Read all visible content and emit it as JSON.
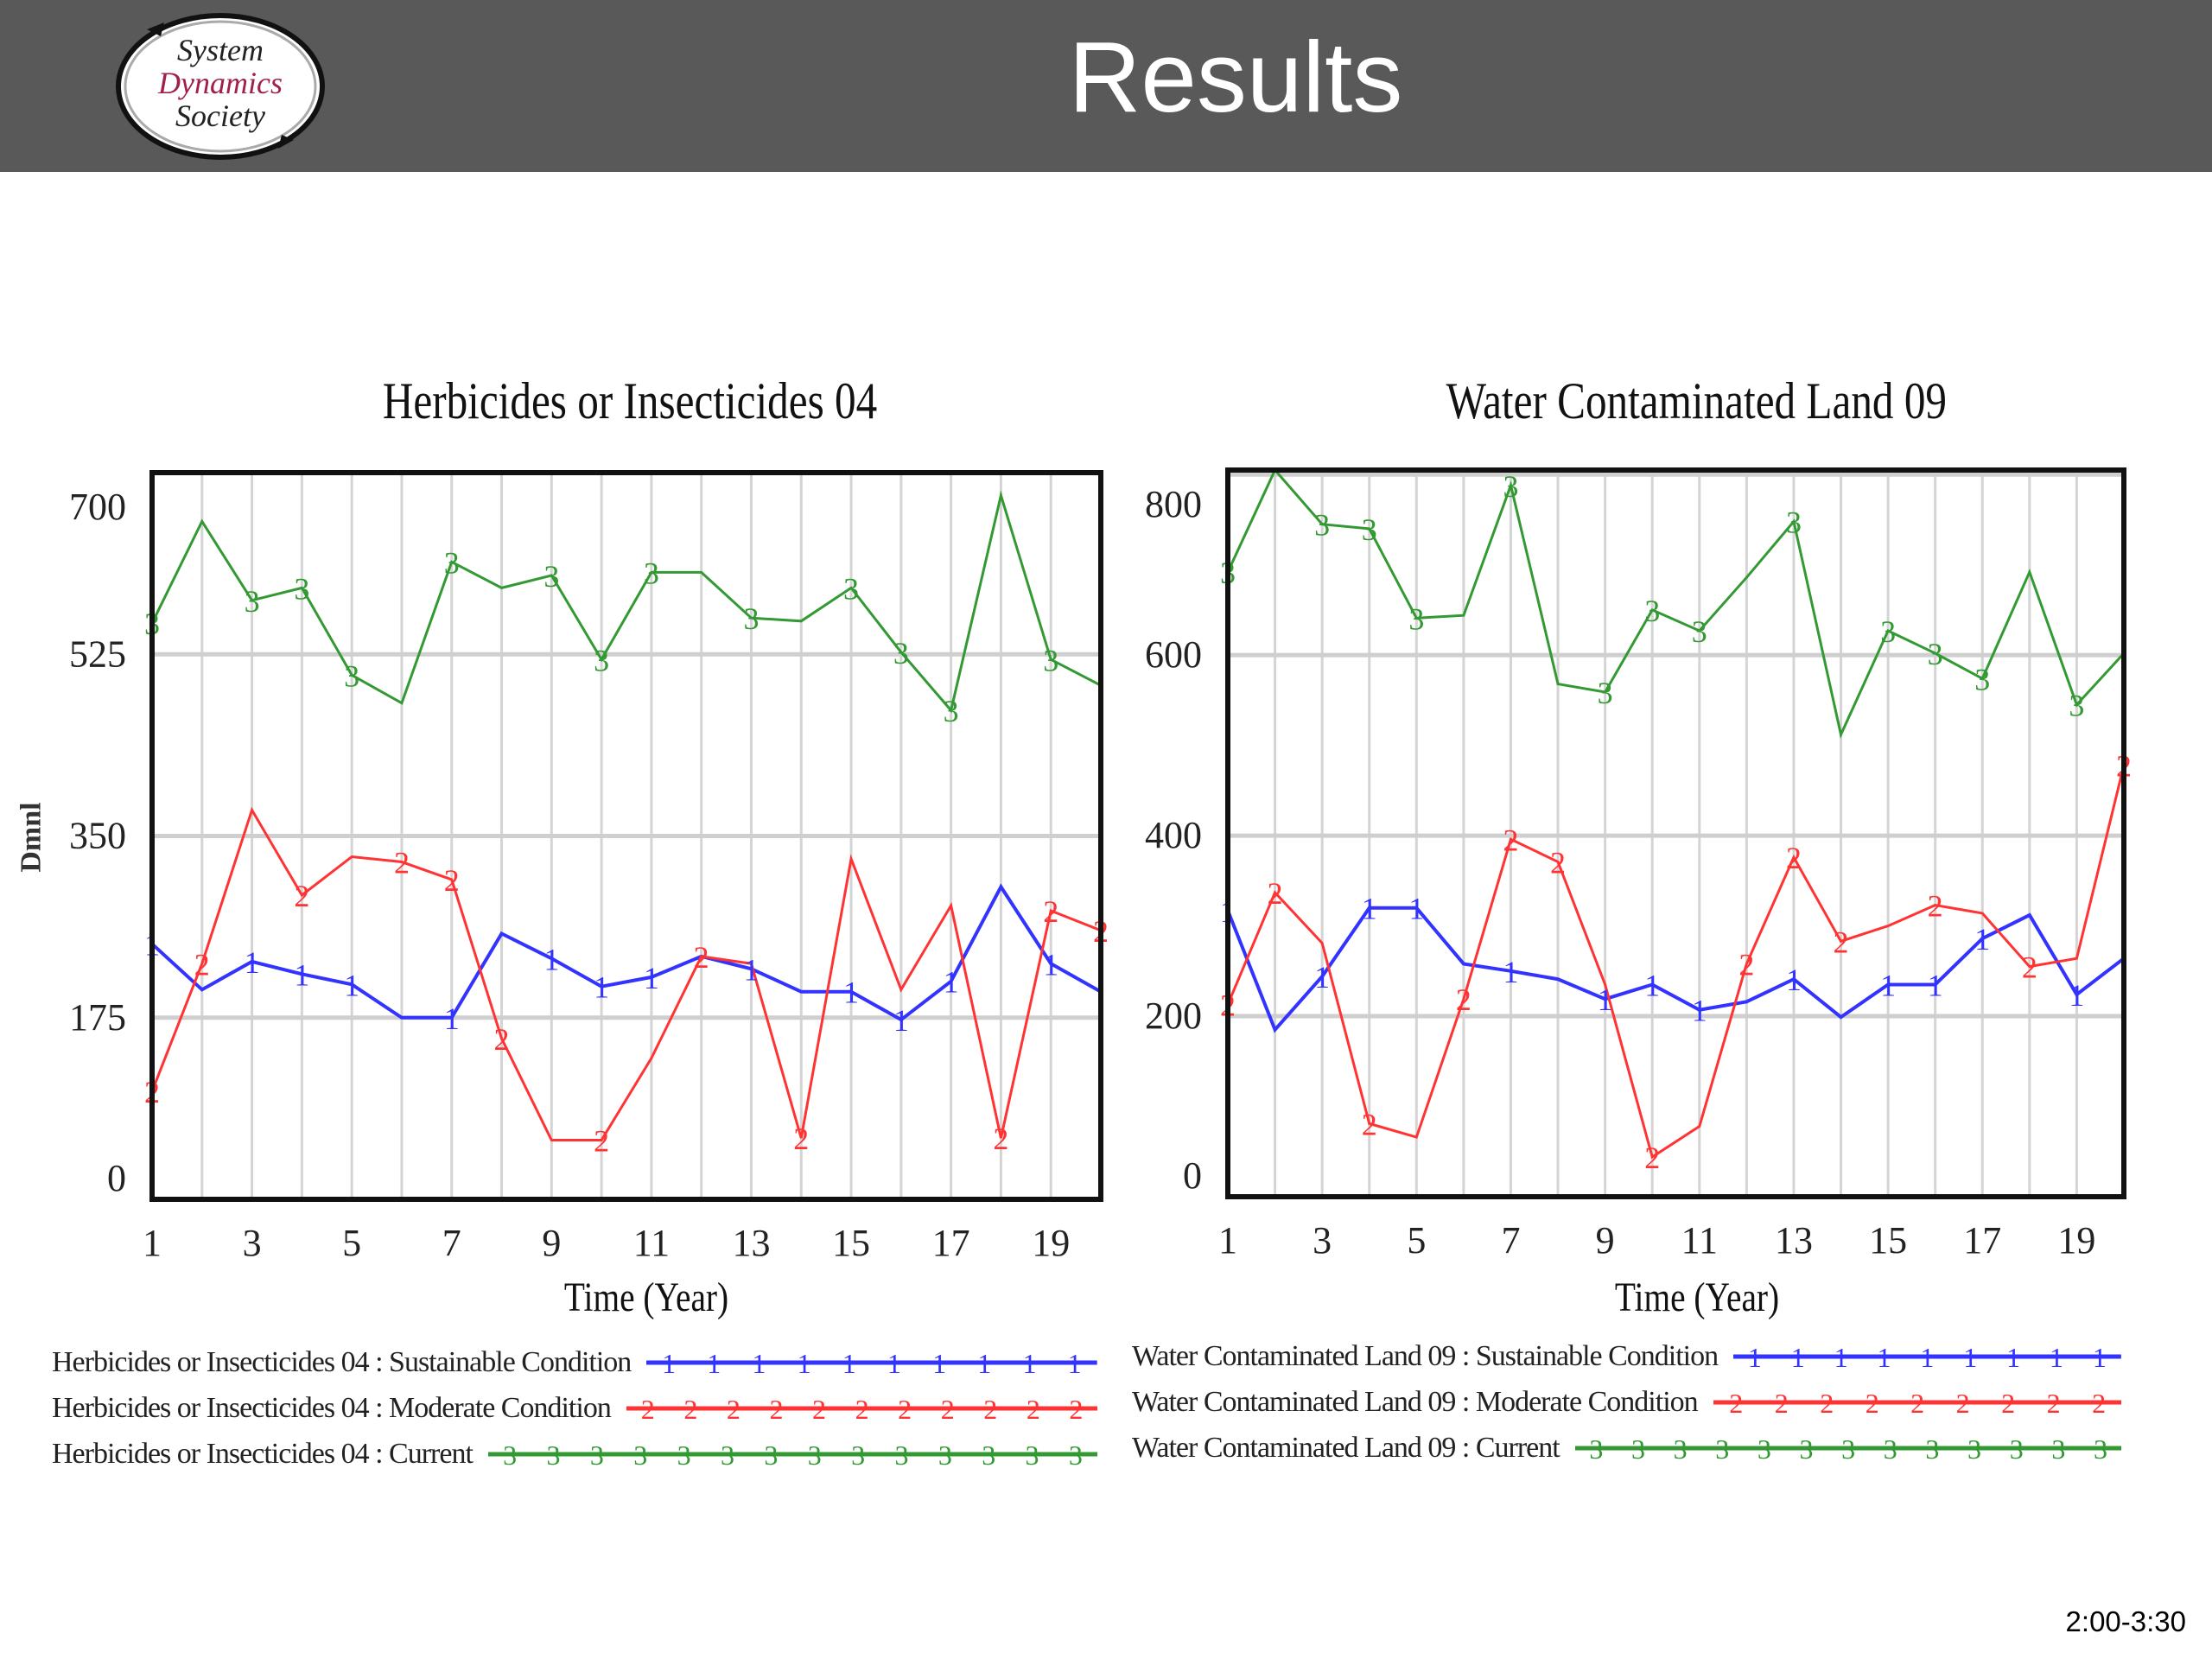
{
  "header": {
    "title": "Results",
    "logo_text": [
      "System",
      "Dynamics",
      "Society"
    ]
  },
  "footer": {
    "time": "2:00-3:30"
  },
  "colors": {
    "sustainable": "#3333ff",
    "moderate": "#ff3333",
    "current": "#339933",
    "header_bg": "#595959",
    "logo_accent": "#a0204a"
  },
  "chart_data": [
    {
      "type": "line",
      "title": "Herbicides or Insecticides 04",
      "xlabel": "Time (Year)",
      "ylabel": "Dmnl",
      "xlim": [
        1,
        20
      ],
      "ylim": [
        0,
        700
      ],
      "x": [
        1,
        2,
        3,
        4,
        5,
        6,
        7,
        8,
        9,
        10,
        11,
        12,
        13,
        14,
        15,
        16,
        17,
        18,
        19,
        20
      ],
      "xticks": [
        "1",
        "3",
        "5",
        "7",
        "9",
        "11",
        "13",
        "15",
        "17",
        "19"
      ],
      "yticks": [
        "0",
        "175",
        "350",
        "525",
        "700"
      ],
      "ytick_values": [
        0,
        175,
        350,
        525,
        700
      ],
      "grid": true,
      "legend_position": "bottom",
      "series": [
        {
          "name": "Herbicides or Insecticides 04 : Sustainable Condition",
          "marker": "1",
          "color_key": "sustainable",
          "values": [
            246,
            202,
            229,
            217,
            207,
            175,
            175,
            256,
            232,
            205,
            214,
            234,
            222,
            200,
            200,
            173,
            210,
            301,
            227,
            200
          ]
        },
        {
          "name": "Herbicides or Insecticides 04 : Moderate Condition",
          "marker": "2",
          "color_key": "moderate",
          "values": [
            104,
            227,
            375,
            293,
            330,
            325,
            308,
            155,
            57,
            57,
            136,
            234,
            227,
            59,
            328,
            202,
            283,
            59,
            278,
            259
          ]
        },
        {
          "name": "Herbicides or Insecticides 04 : Current",
          "marker": "3",
          "color_key": "current",
          "values": [
            555,
            653,
            577,
            589,
            505,
            478,
            614,
            589,
            601,
            520,
            604,
            604,
            560,
            557,
            589,
            527,
            471,
            678,
            520,
            495
          ]
        }
      ]
    },
    {
      "type": "line",
      "title": "Water Contaminated Land 09",
      "xlabel": "Time (Year)",
      "ylabel": "",
      "xlim": [
        1,
        20
      ],
      "ylim": [
        0,
        805
      ],
      "x": [
        1,
        2,
        3,
        4,
        5,
        6,
        7,
        8,
        9,
        10,
        11,
        12,
        13,
        14,
        15,
        16,
        17,
        18,
        19,
        20
      ],
      "xticks": [
        "1",
        "3",
        "5",
        "7",
        "9",
        "11",
        "13",
        "15",
        "17",
        "19"
      ],
      "yticks": [
        "0",
        "200",
        "400",
        "600",
        "800"
      ],
      "ytick_values": [
        0,
        200,
        400,
        600,
        800
      ],
      "grid": true,
      "legend_position": "bottom",
      "series": [
        {
          "name": "Water Contaminated Land 09 : Sustainable Condition",
          "marker": "1",
          "color_key": "sustainable",
          "values": [
            317,
            185,
            244,
            320,
            320,
            258,
            250,
            241,
            219,
            235,
            207,
            216,
            241,
            199,
            235,
            235,
            286,
            312,
            224,
            264
          ]
        },
        {
          "name": "Water Contaminated Land 09 : Moderate Condition",
          "marker": "2",
          "color_key": "moderate",
          "values": [
            213,
            337,
            281,
            81,
            66,
            219,
            396,
            371,
            235,
            44,
            78,
            258,
            376,
            283,
            300,
            323,
            314,
            255,
            264,
            478
          ]
        },
        {
          "name": "Water Contaminated Land 09 : Current",
          "marker": "3",
          "color_key": "current",
          "values": [
            692,
            805,
            745,
            740,
            641,
            644,
            788,
            568,
            559,
            650,
            627,
            686,
            748,
            512,
            627,
            602,
            574,
            692,
            545,
            602
          ]
        }
      ]
    }
  ]
}
